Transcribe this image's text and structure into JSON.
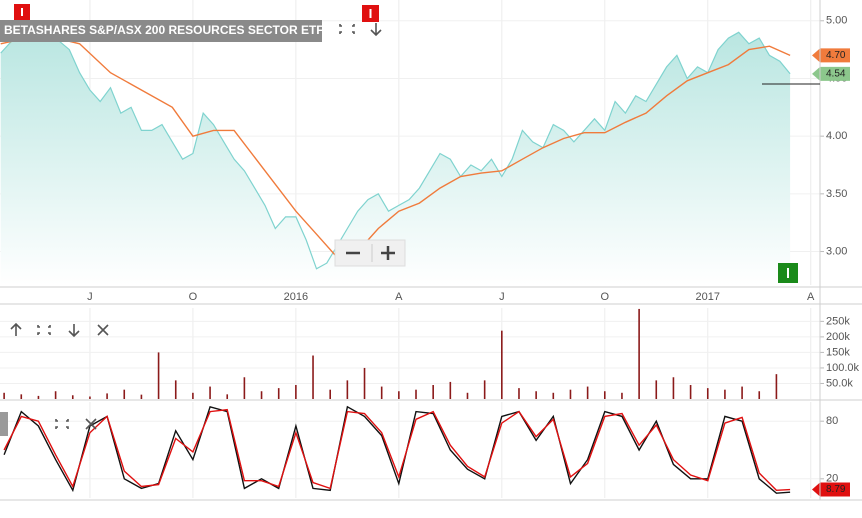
{
  "chart_data": [
    {
      "type": "area",
      "title": "BETASHARES S&P/ASX 200 RESOURCES SECTOR ETF",
      "grid": true,
      "xlim": [
        -2.62,
        21.27
      ],
      "xticks": [
        {
          "value": 0,
          "label": "J"
        },
        {
          "value": 3,
          "label": "O"
        },
        {
          "value": 6,
          "label": "2016"
        },
        {
          "value": 9,
          "label": "A"
        },
        {
          "value": 12,
          "label": "J"
        },
        {
          "value": 15,
          "label": "O"
        },
        {
          "value": 18,
          "label": "2017"
        },
        {
          "value": 21,
          "label": "A"
        }
      ],
      "ylim": [
        2.71,
        5.18
      ],
      "yticks": [
        {
          "value": 3,
          "label": "3.00"
        },
        {
          "value": 3.5,
          "label": "3.50"
        },
        {
          "value": 4,
          "label": "4.00"
        },
        {
          "value": 4.5,
          "label": "4.50"
        },
        {
          "value": 5,
          "label": "5.00"
        }
      ],
      "series": [
        {
          "color": "#7fd3cf",
          "x": [
            -2.6,
            -2.2,
            -1.8,
            -1.4,
            -1.0,
            -0.6,
            -0.3,
            0.0,
            0.3,
            0.6,
            0.9,
            1.2,
            1.5,
            1.8,
            2.1,
            2.4,
            2.7,
            3.0,
            3.3,
            3.6,
            3.9,
            4.2,
            4.5,
            4.8,
            5.1,
            5.4,
            5.7,
            6.0,
            6.3,
            6.6,
            6.9,
            7.2,
            7.5,
            7.8,
            8.1,
            8.4,
            8.7,
            9.0,
            9.3,
            9.6,
            9.9,
            10.2,
            10.5,
            10.8,
            11.1,
            11.4,
            11.7,
            12.0,
            12.3,
            12.6,
            12.9,
            13.2,
            13.5,
            13.8,
            14.1,
            14.4,
            14.7,
            15.0,
            15.3,
            15.6,
            15.9,
            16.2,
            16.5,
            16.8,
            17.1,
            17.4,
            17.7,
            18.0,
            18.3,
            18.6,
            18.9,
            19.2,
            19.5,
            19.8,
            20.1,
            20.4
          ],
          "values": [
            4.72,
            4.85,
            4.82,
            4.9,
            4.85,
            4.75,
            4.55,
            4.4,
            4.3,
            4.42,
            4.2,
            4.25,
            4.05,
            4.05,
            4.1,
            3.95,
            3.8,
            3.85,
            4.2,
            4.1,
            3.95,
            3.8,
            3.7,
            3.55,
            3.4,
            3.2,
            3.3,
            3.3,
            3.1,
            2.85,
            2.9,
            3.05,
            3.2,
            3.35,
            3.45,
            3.5,
            3.35,
            3.4,
            3.45,
            3.55,
            3.7,
            3.85,
            3.8,
            3.65,
            3.75,
            3.7,
            3.8,
            3.65,
            3.8,
            4.05,
            3.95,
            3.9,
            4.1,
            4.05,
            3.95,
            4.05,
            4.15,
            4.05,
            4.3,
            4.2,
            4.35,
            4.3,
            4.45,
            4.6,
            4.7,
            4.5,
            4.6,
            4.55,
            4.75,
            4.85,
            4.9,
            4.8,
            4.85,
            4.7,
            4.65,
            4.54
          ]
        },
        {
          "color": "#f07b3c",
          "x": [
            -2.6,
            -1.4,
            -0.3,
            0.6,
            1.5,
            2.4,
            3.0,
            3.6,
            4.2,
            5.1,
            6.0,
            6.6,
            7.2,
            7.8,
            8.4,
            9.0,
            9.6,
            10.2,
            10.8,
            11.4,
            12.0,
            12.6,
            13.2,
            13.8,
            14.4,
            15.0,
            15.6,
            16.2,
            16.8,
            17.4,
            18.0,
            18.6,
            19.2,
            19.8,
            20.4
          ],
          "values": [
            4.8,
            4.88,
            4.8,
            4.55,
            4.4,
            4.25,
            4.0,
            4.05,
            4.05,
            3.7,
            3.35,
            3.15,
            2.95,
            3.0,
            3.2,
            3.35,
            3.42,
            3.55,
            3.65,
            3.68,
            3.7,
            3.8,
            3.9,
            3.98,
            4.03,
            4.03,
            4.12,
            4.2,
            4.35,
            4.48,
            4.55,
            4.62,
            4.75,
            4.78,
            4.7
          ]
        }
      ],
      "annotations": [
        {
          "text": "4.70",
          "value": 4.7,
          "color": "#f07b3c"
        },
        {
          "text": "4.54",
          "value": 4.54,
          "color": "#8cc78c"
        }
      ]
    },
    {
      "type": "bar",
      "grid": true,
      "color": "#8b1a1a",
      "xlim": [
        -2.62,
        21.27
      ],
      "ylim": [
        0,
        293000
      ],
      "yticks": [
        {
          "value": 50000,
          "label": "50.0k"
        },
        {
          "value": 100000,
          "label": "100.0k"
        },
        {
          "value": 150000,
          "label": "150k"
        },
        {
          "value": 200000,
          "label": "200k"
        },
        {
          "value": 250000,
          "label": "250k"
        }
      ],
      "x": [
        -2.5,
        -2.0,
        -1.5,
        -1.0,
        -0.5,
        0.0,
        0.5,
        1.0,
        1.5,
        2.0,
        2.5,
        3.0,
        3.5,
        4.0,
        4.5,
        5.0,
        5.5,
        6.0,
        6.5,
        7.0,
        7.5,
        8.0,
        8.5,
        9.0,
        9.5,
        10.0,
        10.5,
        11.0,
        11.5,
        12.0,
        12.5,
        13.0,
        13.5,
        14.0,
        14.5,
        15.0,
        15.5,
        16.0,
        16.5,
        17.0,
        17.5,
        18.0,
        18.5,
        19.0,
        19.5,
        20.0
      ],
      "values": [
        20000,
        15000,
        10000,
        25000,
        12000,
        8000,
        18000,
        30000,
        14000,
        150000,
        60000,
        20000,
        40000,
        15000,
        70000,
        25000,
        35000,
        45000,
        140000,
        30000,
        60000,
        100000,
        40000,
        25000,
        30000,
        45000,
        55000,
        20000,
        60000,
        220000,
        35000,
        25000,
        20000,
        30000,
        40000,
        25000,
        20000,
        290000,
        60000,
        70000,
        45000,
        35000,
        30000,
        40000,
        25000,
        80000
      ]
    },
    {
      "type": "line",
      "grid": true,
      "xlim": [
        -2.62,
        21.27
      ],
      "ylim": [
        0,
        100
      ],
      "yticks": [
        20,
        80
      ],
      "x": [
        -2.5,
        -2.0,
        -1.5,
        -1.0,
        -0.5,
        0.0,
        0.5,
        1.0,
        1.5,
        2.0,
        2.5,
        3.0,
        3.5,
        4.0,
        4.5,
        5.0,
        5.5,
        6.0,
        6.5,
        7.0,
        7.5,
        8.0,
        8.5,
        9.0,
        9.5,
        10.0,
        10.5,
        11.0,
        11.5,
        12.0,
        12.5,
        13.0,
        13.5,
        14.0,
        14.5,
        15.0,
        15.5,
        16.0,
        16.5,
        17.0,
        17.5,
        18.0,
        18.5,
        19.0,
        19.5,
        20.0,
        20.4
      ],
      "series": [
        {
          "color": "#111111",
          "values": [
            45,
            90,
            75,
            40,
            8,
            75,
            85,
            20,
            10,
            15,
            70,
            40,
            95,
            90,
            10,
            20,
            10,
            75,
            10,
            8,
            95,
            85,
            65,
            15,
            90,
            88,
            50,
            30,
            20,
            85,
            90,
            60,
            85,
            15,
            40,
            90,
            85,
            50,
            80,
            35,
            20,
            20,
            85,
            80,
            20,
            5,
            6
          ]
        },
        {
          "color": "#e01010",
          "values": [
            50,
            85,
            80,
            45,
            12,
            68,
            85,
            28,
            12,
            14,
            62,
            48,
            90,
            92,
            18,
            18,
            12,
            68,
            16,
            10,
            90,
            88,
            68,
            22,
            82,
            90,
            55,
            33,
            22,
            78,
            90,
            64,
            82,
            22,
            36,
            85,
            88,
            55,
            76,
            40,
            24,
            18,
            78,
            84,
            26,
            8,
            8.79
          ]
        }
      ],
      "annotations": [
        {
          "text": "8.79",
          "value": 8.79,
          "color": "#e01010"
        }
      ]
    }
  ]
}
